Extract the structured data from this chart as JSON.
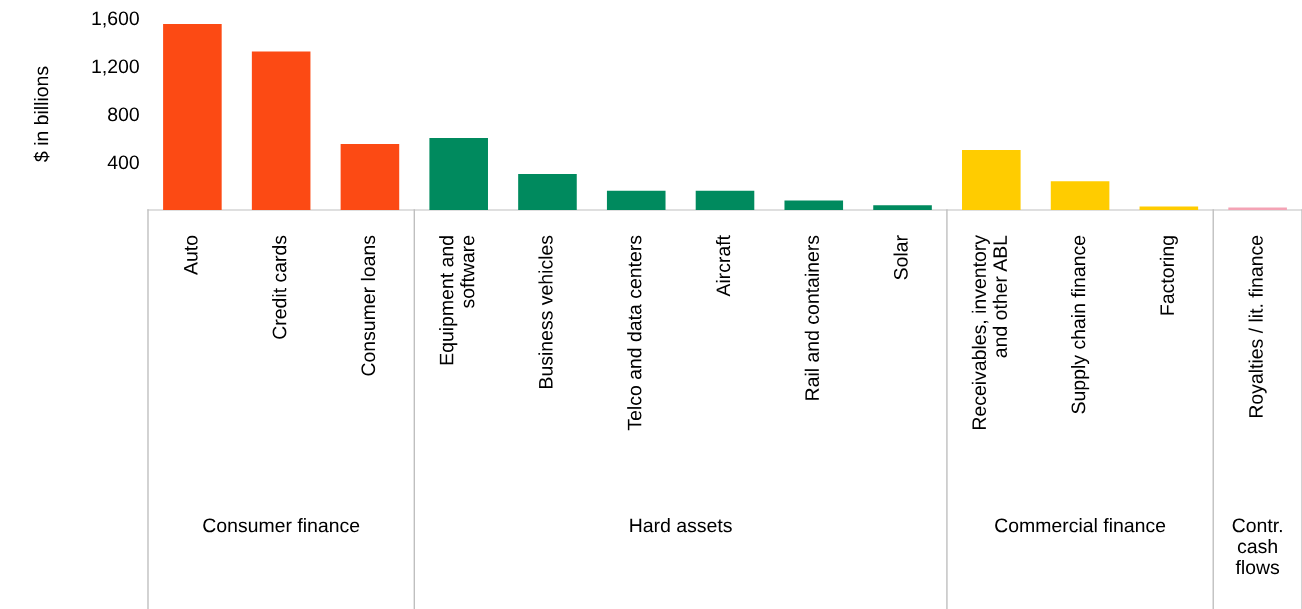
{
  "chart_data": {
    "type": "bar",
    "ylabel": "$ in billions",
    "categories": [
      "Auto",
      "Credit cards",
      "Consumer loans",
      "Equipment and\nsoftware",
      "Business vehicles",
      "Telco and data centers",
      "Aircraft",
      "Rail and containers",
      "Solar",
      "Receivables, inventory\nand other ABL",
      "Supply chain finance",
      "Factoring",
      "Royalties / lit. finance"
    ],
    "values": [
      1550,
      1320,
      550,
      600,
      300,
      160,
      160,
      80,
      40,
      500,
      240,
      30,
      20
    ],
    "colors": [
      "#fc4a14",
      "#fc4a14",
      "#fc4a14",
      "#008a5e",
      "#008a5e",
      "#008a5e",
      "#008a5e",
      "#008a5e",
      "#008a5e",
      "#ffcc00",
      "#ffcc00",
      "#ffcc00",
      "#f4a3b5"
    ],
    "ylim": [
      0,
      1600
    ],
    "yticks": [
      {
        "value": 0,
        "label": null
      },
      {
        "value": 400,
        "label": "400"
      },
      {
        "value": 800,
        "label": "800"
      },
      {
        "value": 1200,
        "label": "1,200"
      },
      {
        "value": 1600,
        "label": "1,600"
      }
    ],
    "annotations": [
      "Consumer finance",
      "Hard assets",
      "Commercial finance",
      "Contr.\ncash\nflows"
    ],
    "grid": false
  }
}
